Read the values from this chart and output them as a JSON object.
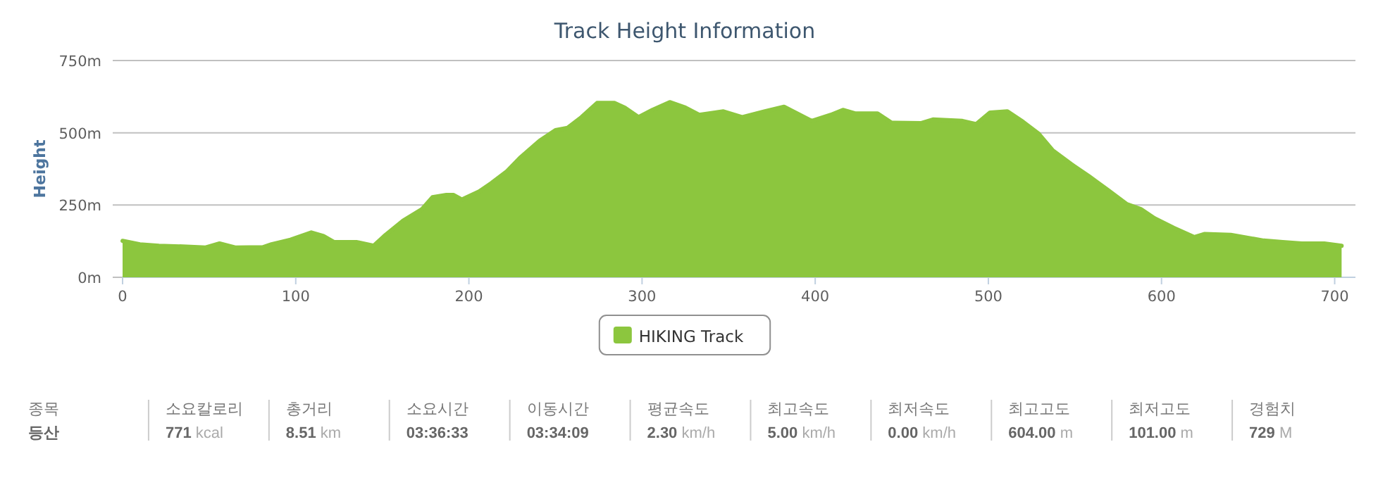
{
  "chart_data": [
    {
      "type": "area",
      "title": "Track Height Information",
      "ylabel": "Height",
      "xlim": [
        0,
        712
      ],
      "ylim": [
        0,
        750
      ],
      "xticks": [
        0,
        100,
        200,
        300,
        400,
        500,
        600,
        700
      ],
      "yticks": [
        {
          "value": 0,
          "label": "0m"
        },
        {
          "value": 250,
          "label": "250m"
        },
        {
          "value": 500,
          "label": "500m"
        },
        {
          "value": 750,
          "label": "750m"
        }
      ],
      "grid": "y",
      "legend": "bottom",
      "marker": "none",
      "series": [
        {
          "name": "HIKING Track",
          "color": "#8cc63e",
          "x": [
            0,
            10,
            21,
            37,
            48,
            56,
            65,
            81,
            86,
            97,
            109,
            116,
            122,
            135,
            145,
            151,
            162,
            173,
            179,
            187,
            191,
            196,
            206,
            213,
            222,
            230,
            241,
            250,
            257,
            265,
            274,
            284,
            290,
            298,
            306,
            316,
            325,
            333,
            347,
            358,
            371,
            382,
            398,
            409,
            416,
            423,
            436,
            444,
            461,
            468,
            485,
            493,
            501,
            511,
            520,
            529,
            537,
            548,
            558,
            569,
            580,
            588,
            596,
            607,
            619,
            625,
            640,
            659,
            670,
            681,
            694,
            704
          ],
          "values": [
            126,
            114,
            109,
            106,
            103,
            117,
            103,
            104,
            114,
            130,
            155,
            143,
            122,
            122,
            109,
            142,
            196,
            236,
            277,
            285,
            285,
            269,
            297,
            326,
            367,
            416,
            473,
            509,
            517,
            554,
            603,
            603,
            587,
            554,
            579,
            606,
            587,
            562,
            574,
            554,
            574,
            590,
            541,
            562,
            579,
            567,
            567,
            535,
            533,
            546,
            541,
            530,
            570,
            574,
            538,
            497,
            440,
            391,
            350,
            302,
            253,
            236,
            204,
            171,
            139,
            150,
            147,
            127,
            122,
            117,
            117,
            109
          ]
        }
      ]
    },
    {
      "type": "other",
      "categories": [
        "종목",
        "소요칼로리",
        "총거리",
        "소요시간",
        "이동시간",
        "평균속도",
        "최고속도",
        "최저속도",
        "최고고도",
        "최저고도",
        "경험치"
      ],
      "value_labels": [
        "등산",
        "771 kcal",
        "8.51 km",
        "03:36:33",
        "03:34:09",
        "2.30 km/h",
        "5.00 km/h",
        "0.00 km/h",
        "604.00 m",
        "101.00 m",
        "729 M"
      ]
    }
  ]
}
